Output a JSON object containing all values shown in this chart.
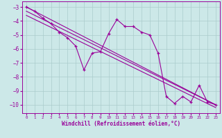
{
  "background_color": "#cce8e8",
  "grid_color": "#aacccc",
  "line_color": "#990099",
  "marker_color": "#990099",
  "xlabel": "Windchill (Refroidissement éolien,°C)",
  "xlim": [
    -0.5,
    23.5
  ],
  "ylim": [
    -10.6,
    -2.6
  ],
  "yticks": [
    -10,
    -9,
    -8,
    -7,
    -6,
    -5,
    -4,
    -3
  ],
  "xticks": [
    0,
    1,
    2,
    3,
    4,
    5,
    6,
    7,
    8,
    9,
    10,
    11,
    12,
    13,
    14,
    15,
    16,
    17,
    18,
    19,
    20,
    21,
    22,
    23
  ],
  "line1_x": [
    0,
    1,
    2,
    3,
    4,
    5,
    6,
    7,
    8,
    9,
    10,
    11,
    12,
    13,
    14,
    15,
    16,
    17,
    18,
    19,
    20,
    21,
    22,
    23
  ],
  "line1_y": [
    -3.0,
    -3.3,
    -3.8,
    -4.2,
    -4.8,
    -5.2,
    -5.8,
    -7.5,
    -6.3,
    -6.2,
    -4.9,
    -3.9,
    -4.4,
    -4.4,
    -4.8,
    -5.0,
    -6.3,
    -9.4,
    -9.9,
    -9.4,
    -9.8,
    -8.6,
    -9.8,
    -10.0
  ],
  "line2_x": [
    0,
    23
  ],
  "line2_y": [
    -3.0,
    -10.0
  ],
  "line3_x": [
    0,
    23
  ],
  "line3_y": [
    -3.3,
    -10.0
  ],
  "line4_x": [
    0,
    23
  ],
  "line4_y": [
    -3.6,
    -10.2
  ]
}
